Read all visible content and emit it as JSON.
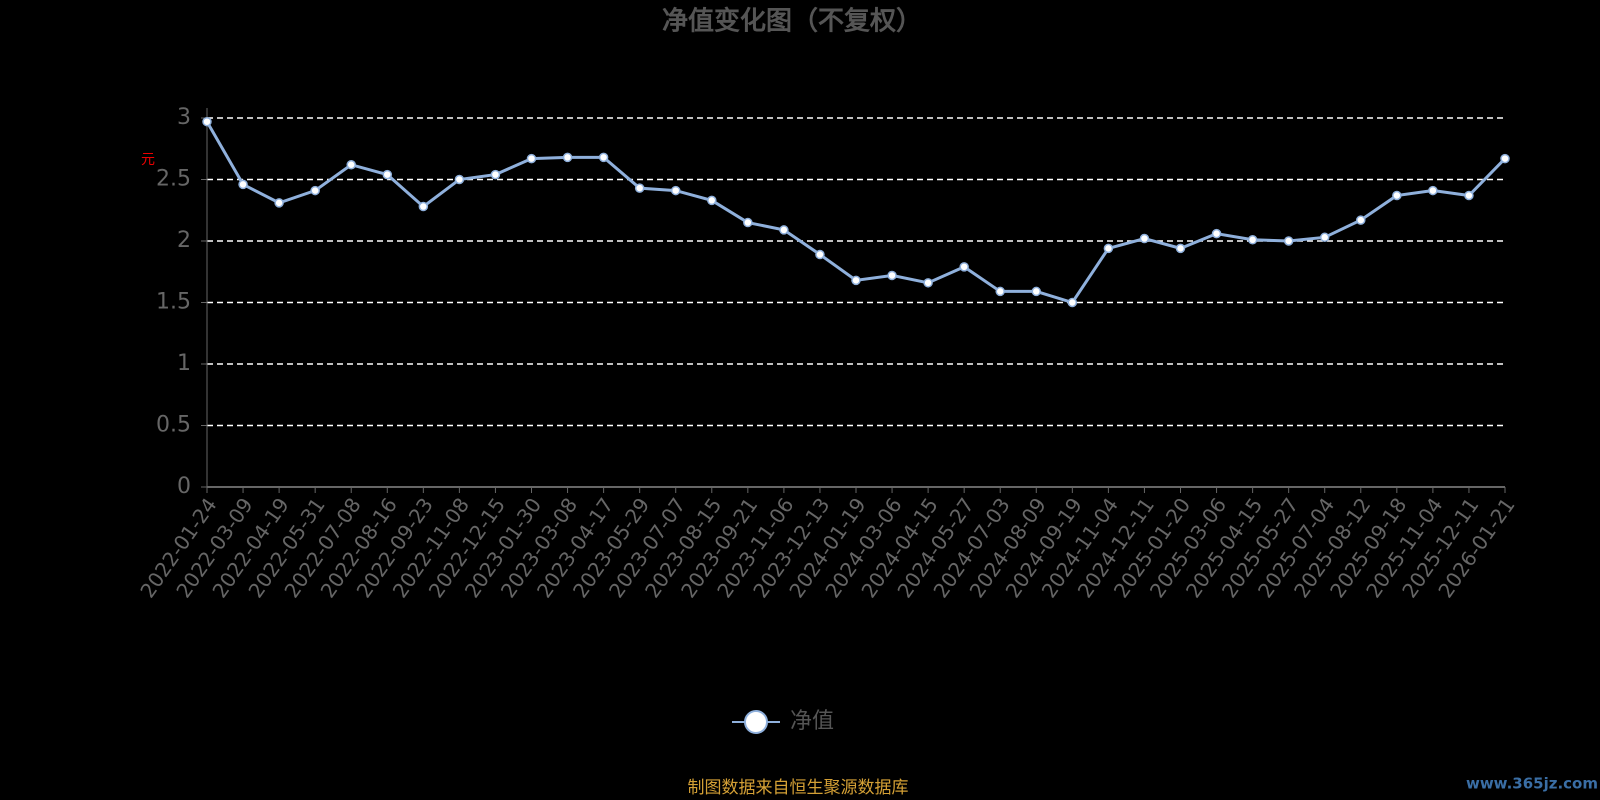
{
  "chart_data": {
    "type": "line",
    "title": "净值变化图（不复权）",
    "y_label": "元",
    "x": [
      "2022-01-24",
      "2022-03-09",
      "2022-04-19",
      "2022-05-31",
      "2022-07-08",
      "2022-08-16",
      "2022-09-23",
      "2022-11-08",
      "2022-12-15",
      "2023-01-30",
      "2023-03-08",
      "2023-04-17",
      "2023-05-29",
      "2023-07-07",
      "2023-08-15",
      "2023-09-21",
      "2023-11-06",
      "2023-12-13",
      "2024-01-19",
      "2024-03-06",
      "2024-04-15",
      "2024-05-27",
      "2024-07-03",
      "2024-08-09",
      "2024-09-19",
      "2024-11-04",
      "2024-12-11",
      "2025-01-20",
      "2025-03-06",
      "2025-04-15",
      "2025-05-27",
      "2025-07-04",
      "2025-08-12",
      "2025-09-18",
      "2025-11-04",
      "2025-12-11",
      "2026-01-21"
    ],
    "series": [
      {
        "name": "净值",
        "color": "#8fb0dc",
        "values": [
          2.97,
          2.46,
          2.31,
          2.41,
          2.62,
          2.54,
          2.28,
          2.5,
          2.54,
          2.67,
          2.68,
          2.68,
          2.43,
          2.41,
          2.33,
          2.15,
          2.09,
          1.89,
          1.68,
          1.72,
          1.66,
          1.79,
          1.59,
          1.59,
          1.5,
          1.94,
          2.02,
          1.94,
          2.06,
          2.01,
          2.0,
          2.03,
          2.17,
          2.37,
          2.41,
          2.37,
          2.67
        ]
      }
    ],
    "ylim": [
      0,
      3
    ],
    "yticks": [
      0,
      0.5,
      1,
      1.5,
      2,
      2.5,
      3
    ],
    "grid": true,
    "legend": "bottom",
    "source": "制图数据来自恒生聚源数据库",
    "watermark": "www.365jz.com"
  }
}
